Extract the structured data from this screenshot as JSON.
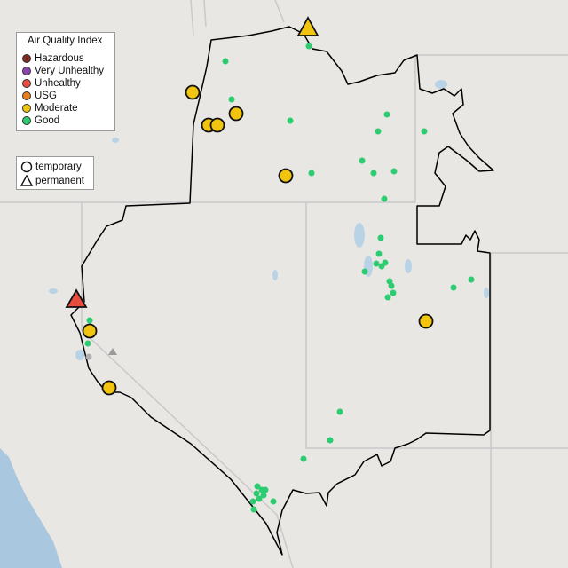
{
  "legend": {
    "title": "Air Quality Index",
    "items": [
      {
        "label": "Hazardous",
        "color": "#7e2a1e"
      },
      {
        "label": "Very Unhealthy",
        "color": "#8e44ad"
      },
      {
        "label": "Unhealthy",
        "color": "#e74c3c"
      },
      {
        "label": "USG",
        "color": "#e67e22"
      },
      {
        "label": "Moderate",
        "color": "#f1c40f"
      },
      {
        "label": "Good",
        "color": "#2ecc71"
      }
    ]
  },
  "shape_legend": {
    "items": [
      {
        "label": "temporary",
        "shape": "circle-icon"
      },
      {
        "label": "permanent",
        "shape": "triangle-icon"
      }
    ]
  },
  "colors": {
    "background": "#e9e7e4",
    "water": "#b9d3e6",
    "ocean": "#a9c7df",
    "state_line": "#c9c9c9",
    "boundary": "#000000",
    "good": "#2ecc71",
    "moderate": "#f1c40f",
    "unhealthy": "#e74c3c"
  }
}
